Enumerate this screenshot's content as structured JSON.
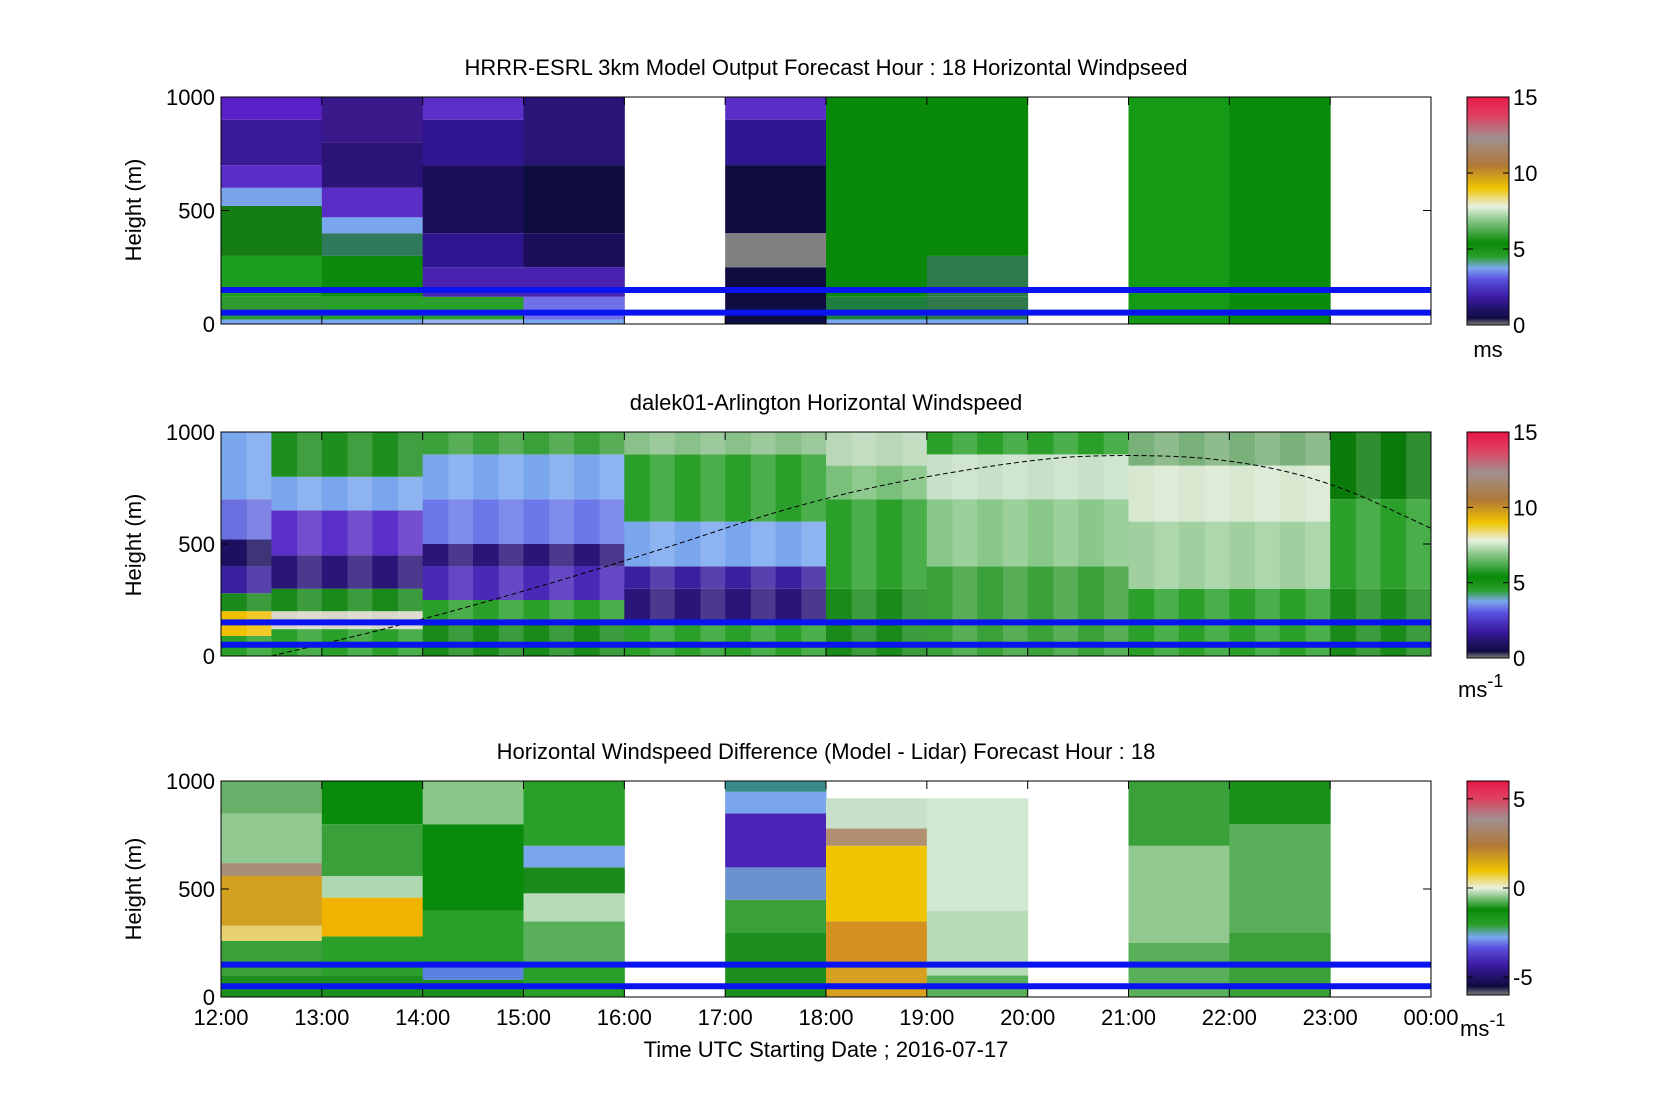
{
  "figure": {
    "xlabel": "Time UTC  Starting Date ; 2016-07-17",
    "x_tick_labels": [
      "12:00",
      "13:00",
      "14:00",
      "15:00",
      "16:00",
      "17:00",
      "18:00",
      "19:00",
      "20:00",
      "21:00",
      "22:00",
      "23:00",
      "00:00"
    ]
  },
  "chart_data": [
    {
      "type": "heatmap",
      "title": "HRRR-ESRL 3km Model Output   Forecast Hour : 18 Horizontal Windpseed",
      "ylabel": "Height (m)",
      "y_tick_labels": [
        "1000",
        "500",
        "0"
      ],
      "ylim": [
        0,
        1000
      ],
      "xlim": [
        "12:00",
        "00:00"
      ],
      "colorbar": {
        "unit": "ms",
        "range": [
          0,
          15
        ],
        "tick_labels": [
          "15",
          "10",
          "5",
          "0"
        ]
      },
      "missing_hours": [
        "16:00-17:00",
        "20:00-21:00",
        "23:00-00:00"
      ],
      "columns": [
        {
          "start": "12:00",
          "layers": [
            {
              "from": 0,
              "to": 20,
              "color": "#7aa6ee"
            },
            {
              "from": 20,
              "to": 120,
              "color": "#2f9a2f"
            },
            {
              "from": 120,
              "to": 300,
              "color": "#1e9e1e"
            },
            {
              "from": 300,
              "to": 520,
              "color": "#137c13"
            },
            {
              "from": 520,
              "to": 600,
              "color": "#79a4ea"
            },
            {
              "from": 600,
              "to": 700,
              "color": "#5a2ec6"
            },
            {
              "from": 700,
              "to": 900,
              "color": "#3b1a98"
            },
            {
              "from": 900,
              "to": 1000,
              "color": "#5a20c8"
            }
          ]
        },
        {
          "start": "13:00",
          "layers": [
            {
              "from": 0,
              "to": 20,
              "color": "#7aa6ee"
            },
            {
              "from": 20,
              "to": 120,
              "color": "#2aa02a"
            },
            {
              "from": 120,
              "to": 300,
              "color": "#0c8a0c"
            },
            {
              "from": 300,
              "to": 400,
              "color": "#2f7a5a"
            },
            {
              "from": 400,
              "to": 470,
              "color": "#7aa6ee"
            },
            {
              "from": 470,
              "to": 600,
              "color": "#5a2ec6"
            },
            {
              "from": 600,
              "to": 800,
              "color": "#2a1478"
            },
            {
              "from": 800,
              "to": 1000,
              "color": "#3a1a8a"
            }
          ]
        },
        {
          "start": "14:00",
          "layers": [
            {
              "from": 0,
              "to": 20,
              "color": "#9ab6f0"
            },
            {
              "from": 20,
              "to": 120,
              "color": "#2aa02a"
            },
            {
              "from": 120,
              "to": 250,
              "color": "#4a22b0"
            },
            {
              "from": 250,
              "to": 400,
              "color": "#2e1690"
            },
            {
              "from": 400,
              "to": 700,
              "color": "#1c0e5a"
            },
            {
              "from": 700,
              "to": 900,
              "color": "#2e1690"
            },
            {
              "from": 900,
              "to": 1000,
              "color": "#5a30c8"
            }
          ]
        },
        {
          "start": "15:00",
          "layers": [
            {
              "from": 0,
              "to": 20,
              "color": "#7aa6ee"
            },
            {
              "from": 20,
              "to": 120,
              "color": "#7070e8"
            },
            {
              "from": 120,
              "to": 250,
              "color": "#4a22b0"
            },
            {
              "from": 250,
              "to": 400,
              "color": "#1c0e5a"
            },
            {
              "from": 400,
              "to": 700,
              "color": "#0e0c40"
            },
            {
              "from": 700,
              "to": 1000,
              "color": "#2a1478"
            }
          ]
        },
        {
          "start": "17:00",
          "layers": [
            {
              "from": 0,
              "to": 250,
              "color": "#0e0c40"
            },
            {
              "from": 250,
              "to": 400,
              "color": "#808080"
            },
            {
              "from": 400,
              "to": 700,
              "color": "#0e0c40"
            },
            {
              "from": 700,
              "to": 900,
              "color": "#2e1690"
            },
            {
              "from": 900,
              "to": 1000,
              "color": "#5a2ec6"
            }
          ]
        },
        {
          "start": "18:00",
          "layers": [
            {
              "from": 0,
              "to": 20,
              "color": "#7aa6ee"
            },
            {
              "from": 20,
              "to": 120,
              "color": "#1e7e3e"
            },
            {
              "from": 120,
              "to": 1000,
              "color": "#088a08"
            }
          ]
        },
        {
          "start": "19:00",
          "layers": [
            {
              "from": 0,
              "to": 20,
              "color": "#7aa6ee"
            },
            {
              "from": 20,
              "to": 120,
              "color": "#2f7a4a"
            },
            {
              "from": 120,
              "to": 300,
              "color": "#2f7a4a"
            },
            {
              "from": 300,
              "to": 1000,
              "color": "#088a08"
            }
          ]
        },
        {
          "start": "21:00",
          "layers": [
            {
              "from": 0,
              "to": 1000,
              "color": "#149a14"
            }
          ]
        },
        {
          "start": "22:00",
          "layers": [
            {
              "from": 0,
              "to": 1000,
              "color": "#0a8c0a"
            }
          ]
        }
      ],
      "reference_lines_m": [
        50,
        150
      ]
    },
    {
      "type": "heatmap",
      "title": "dalek01-Arlington  Horizontal Windspeed",
      "ylabel": "Height (m)",
      "y_tick_labels": [
        "1000",
        "500",
        "0"
      ],
      "ylim": [
        0,
        1000
      ],
      "xlim": [
        "12:00",
        "00:00"
      ],
      "colorbar": {
        "unit": "ms-1",
        "range": [
          0,
          15
        ],
        "tick_labels": [
          "15",
          "10",
          "5",
          "0"
        ]
      },
      "columns_per_hour": 4,
      "bands": [
        {
          "x_from": 0,
          "x_to": 0.5,
          "rows": [
            {
              "from": 0,
              "to": 90,
              "color": "#2aa02a"
            },
            {
              "from": 90,
              "to": 200,
              "color": "#f0c000"
            },
            {
              "from": 200,
              "to": 280,
              "color": "#1a8a1a"
            },
            {
              "from": 280,
              "to": 400,
              "color": "#3a20a0"
            },
            {
              "from": 400,
              "to": 520,
              "color": "#1c1060"
            },
            {
              "from": 520,
              "to": 700,
              "color": "#6a70e0"
            },
            {
              "from": 700,
              "to": 1000,
              "color": "#7aa6ee"
            }
          ]
        },
        {
          "x_from": 0.5,
          "x_to": 2,
          "rows": [
            {
              "from": 0,
              "to": 120,
              "color": "#2aa02a"
            },
            {
              "from": 120,
              "to": 200,
              "color": "#d8d8c8"
            },
            {
              "from": 200,
              "to": 300,
              "color": "#1a8a1a"
            },
            {
              "from": 300,
              "to": 450,
              "color": "#2a1678"
            },
            {
              "from": 450,
              "to": 650,
              "color": "#5a30c8"
            },
            {
              "from": 650,
              "to": 800,
              "color": "#7aa6ee"
            },
            {
              "from": 800,
              "to": 1000,
              "color": "#1e8e1e"
            }
          ]
        },
        {
          "x_from": 2,
          "x_to": 4,
          "rows": [
            {
              "from": 0,
              "to": 150,
              "color": "#1a8a1a"
            },
            {
              "from": 150,
              "to": 250,
              "color": "#2aa02a"
            },
            {
              "from": 250,
              "to": 400,
              "color": "#4a28b8"
            },
            {
              "from": 400,
              "to": 500,
              "color": "#2a1678"
            },
            {
              "from": 500,
              "to": 700,
              "color": "#6a78e8"
            },
            {
              "from": 700,
              "to": 900,
              "color": "#7aa6ee"
            },
            {
              "from": 900,
              "to": 1000,
              "color": "#3aa03a"
            }
          ]
        },
        {
          "x_from": 4,
          "x_to": 6,
          "rows": [
            {
              "from": 0,
              "to": 150,
              "color": "#2aa02a"
            },
            {
              "from": 150,
              "to": 300,
              "color": "#2a1678"
            },
            {
              "from": 300,
              "to": 400,
              "color": "#3a20a0"
            },
            {
              "from": 400,
              "to": 600,
              "color": "#7aa6ee"
            },
            {
              "from": 600,
              "to": 900,
              "color": "#2aa02a"
            },
            {
              "from": 900,
              "to": 1000,
              "color": "#8ac08a"
            }
          ]
        },
        {
          "x_from": 6,
          "x_to": 7,
          "rows": [
            {
              "from": 0,
              "to": 300,
              "color": "#1a8a1a"
            },
            {
              "from": 300,
              "to": 700,
              "color": "#2aa02a"
            },
            {
              "from": 700,
              "to": 850,
              "color": "#7ac07a"
            },
            {
              "from": 850,
              "to": 1000,
              "color": "#b8d8b8"
            }
          ]
        },
        {
          "x_from": 7,
          "x_to": 9,
          "rows": [
            {
              "from": 0,
              "to": 400,
              "color": "#3aa03a"
            },
            {
              "from": 400,
              "to": 700,
              "color": "#8ac88a"
            },
            {
              "from": 700,
              "to": 900,
              "color": "#c8e0c8"
            },
            {
              "from": 900,
              "to": 1000,
              "color": "#2aa02a"
            }
          ]
        },
        {
          "x_from": 9,
          "x_to": 11,
          "rows": [
            {
              "from": 0,
              "to": 300,
              "color": "#2aa02a"
            },
            {
              "from": 300,
              "to": 600,
              "color": "#a0d0a0"
            },
            {
              "from": 600,
              "to": 850,
              "color": "#d8e8d0"
            },
            {
              "from": 850,
              "to": 1000,
              "color": "#7ab07a"
            }
          ]
        },
        {
          "x_from": 11,
          "x_to": 12,
          "rows": [
            {
              "from": 0,
              "to": 300,
              "color": "#1a8a1a"
            },
            {
              "from": 300,
              "to": 700,
              "color": "#2aa02a"
            },
            {
              "from": 700,
              "to": 1000,
              "color": "#0a7a0a"
            }
          ]
        }
      ],
      "boundary_layer_curve": [
        [
          0.5,
          0
        ],
        [
          2,
          160
        ],
        [
          4,
          420
        ],
        [
          6,
          720
        ],
        [
          8,
          880
        ],
        [
          9,
          900
        ],
        [
          10,
          880
        ],
        [
          11,
          780
        ],
        [
          12,
          570
        ]
      ],
      "reference_lines_m": [
        50,
        150
      ]
    },
    {
      "type": "heatmap",
      "title": "Horizontal Windspeed Difference (Model - Lidar) Forecast Hour : 18",
      "ylabel": "Height (m)",
      "y_tick_labels": [
        "1000",
        "500",
        "0"
      ],
      "ylim": [
        0,
        1000
      ],
      "xlim": [
        "12:00",
        "00:00"
      ],
      "colorbar": {
        "unit": "ms-1",
        "range": [
          -6,
          6
        ],
        "tick_labels": [
          "5",
          "0",
          "-5"
        ]
      },
      "missing_hours": [
        "16:00-17:00",
        "20:00-21:00",
        "23:00-00:00"
      ],
      "columns": [
        {
          "start": "12:00",
          "layers": [
            {
              "from": 0,
              "to": 100,
              "color": "#1e8e1e"
            },
            {
              "from": 100,
              "to": 260,
              "color": "#3aa03a"
            },
            {
              "from": 260,
              "to": 330,
              "color": "#e8d070"
            },
            {
              "from": 330,
              "to": 560,
              "color": "#d4a020"
            },
            {
              "from": 560,
              "to": 620,
              "color": "#a89078"
            },
            {
              "from": 620,
              "to": 850,
              "color": "#90c890"
            },
            {
              "from": 850,
              "to": 1000,
              "color": "#6ab06a"
            }
          ]
        },
        {
          "start": "13:00",
          "layers": [
            {
              "from": 0,
              "to": 100,
              "color": "#1e8e1e"
            },
            {
              "from": 100,
              "to": 280,
              "color": "#2aa02a"
            },
            {
              "from": 280,
              "to": 460,
              "color": "#f0b400"
            },
            {
              "from": 460,
              "to": 560,
              "color": "#b0d8b0"
            },
            {
              "from": 560,
              "to": 800,
              "color": "#3aa03a"
            },
            {
              "from": 800,
              "to": 1000,
              "color": "#0a8a0a"
            }
          ]
        },
        {
          "start": "14:00",
          "layers": [
            {
              "from": 0,
              "to": 80,
              "color": "#1e8e1e"
            },
            {
              "from": 80,
              "to": 150,
              "color": "#5a80e0"
            },
            {
              "from": 150,
              "to": 400,
              "color": "#2aa02a"
            },
            {
              "from": 400,
              "to": 800,
              "color": "#0a8a0a"
            },
            {
              "from": 800,
              "to": 1000,
              "color": "#8ac88a"
            }
          ]
        },
        {
          "start": "15:00",
          "layers": [
            {
              "from": 0,
              "to": 150,
              "color": "#2aa02a"
            },
            {
              "from": 150,
              "to": 350,
              "color": "#5ab05a"
            },
            {
              "from": 350,
              "to": 480,
              "color": "#b8dcb8"
            },
            {
              "from": 480,
              "to": 600,
              "color": "#1a8a1a"
            },
            {
              "from": 600,
              "to": 700,
              "color": "#7aa6ee"
            },
            {
              "from": 700,
              "to": 1000,
              "color": "#2aa02a"
            }
          ]
        },
        {
          "start": "17:00",
          "layers": [
            {
              "from": 0,
              "to": 300,
              "color": "#1e8e1e"
            },
            {
              "from": 300,
              "to": 450,
              "color": "#3aa03a"
            },
            {
              "from": 450,
              "to": 600,
              "color": "#6a90d0"
            },
            {
              "from": 600,
              "to": 850,
              "color": "#4a22b8"
            },
            {
              "from": 850,
              "to": 950,
              "color": "#7aa6ee"
            },
            {
              "from": 950,
              "to": 1000,
              "color": "#3a8a8a"
            }
          ]
        },
        {
          "start": "18:00",
          "layers": [
            {
              "from": 0,
              "to": 150,
              "color": "#d8a020"
            },
            {
              "from": 150,
              "to": 350,
              "color": "#d49020"
            },
            {
              "from": 350,
              "to": 700,
              "color": "#f0c400"
            },
            {
              "from": 700,
              "to": 780,
              "color": "#b09070"
            },
            {
              "from": 780,
              "to": 920,
              "color": "#c8e0c8"
            }
          ]
        },
        {
          "start": "19:00",
          "layers": [
            {
              "from": 0,
              "to": 100,
              "color": "#5ab05a"
            },
            {
              "from": 100,
              "to": 400,
              "color": "#b8dcb8"
            },
            {
              "from": 400,
              "to": 920,
              "color": "#d0e8d0"
            }
          ]
        },
        {
          "start": "21:00",
          "layers": [
            {
              "from": 0,
              "to": 250,
              "color": "#5ab05a"
            },
            {
              "from": 250,
              "to": 700,
              "color": "#90c890"
            },
            {
              "from": 700,
              "to": 1000,
              "color": "#3aa03a"
            }
          ]
        },
        {
          "start": "22:00",
          "layers": [
            {
              "from": 0,
              "to": 300,
              "color": "#3aa03a"
            },
            {
              "from": 300,
              "to": 800,
              "color": "#5ab05a"
            },
            {
              "from": 800,
              "to": 1000,
              "color": "#1a901a"
            }
          ]
        }
      ],
      "reference_lines_m": [
        50,
        150
      ]
    }
  ]
}
